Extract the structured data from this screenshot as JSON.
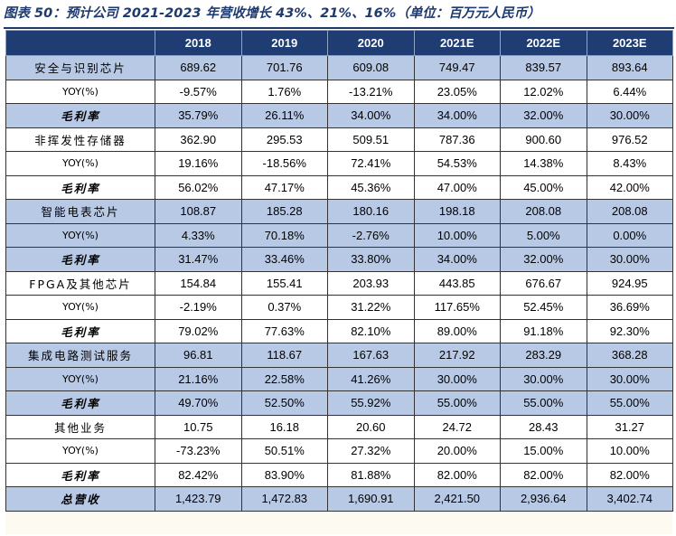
{
  "title": "图表 50：预计公司 2021-2023 年营收增长 43%、21%、16%（单位：百万元人民币）",
  "headers": [
    "",
    "2018",
    "2019",
    "2020",
    "2021E",
    "2022E",
    "2023E"
  ],
  "rows": [
    {
      "label": "安全与识别芯片",
      "kind": "seg",
      "shade": true,
      "values": [
        "689.62",
        "701.76",
        "609.08",
        "749.47",
        "839.57",
        "893.64"
      ]
    },
    {
      "label": "YOY(%)",
      "kind": "yoy",
      "shade": false,
      "values": [
        "-9.57%",
        "1.76%",
        "-13.21%",
        "23.05%",
        "12.02%",
        "6.44%"
      ]
    },
    {
      "label": "毛利率",
      "kind": "gm",
      "shade": true,
      "values": [
        "35.79%",
        "26.11%",
        "34.00%",
        "34.00%",
        "32.00%",
        "30.00%"
      ]
    },
    {
      "label": "非挥发性存储器",
      "kind": "seg",
      "shade": false,
      "values": [
        "362.90",
        "295.53",
        "509.51",
        "787.36",
        "900.60",
        "976.52"
      ]
    },
    {
      "label": "YOY(%)",
      "kind": "yoy",
      "shade": false,
      "values": [
        "19.16%",
        "-18.56%",
        "72.41%",
        "54.53%",
        "14.38%",
        "8.43%"
      ]
    },
    {
      "label": "毛利率",
      "kind": "gm",
      "shade": false,
      "values": [
        "56.02%",
        "47.17%",
        "45.36%",
        "47.00%",
        "45.00%",
        "42.00%"
      ]
    },
    {
      "label": "智能电表芯片",
      "kind": "seg",
      "shade": true,
      "values": [
        "108.87",
        "185.28",
        "180.16",
        "198.18",
        "208.08",
        "208.08"
      ]
    },
    {
      "label": "YOY(%)",
      "kind": "yoy",
      "shade": true,
      "values": [
        "4.33%",
        "70.18%",
        "-2.76%",
        "10.00%",
        "5.00%",
        "0.00%"
      ]
    },
    {
      "label": "毛利率",
      "kind": "gm",
      "shade": true,
      "values": [
        "31.47%",
        "33.46%",
        "33.80%",
        "34.00%",
        "32.00%",
        "30.00%"
      ]
    },
    {
      "label": "FPGA及其他芯片",
      "kind": "seg",
      "shade": false,
      "values": [
        "154.84",
        "155.41",
        "203.93",
        "443.85",
        "676.67",
        "924.95"
      ]
    },
    {
      "label": "YOY(%)",
      "kind": "yoy",
      "shade": false,
      "values": [
        "-2.19%",
        "0.37%",
        "31.22%",
        "117.65%",
        "52.45%",
        "36.69%"
      ]
    },
    {
      "label": "毛利率",
      "kind": "gm",
      "shade": false,
      "values": [
        "79.02%",
        "77.63%",
        "82.10%",
        "89.00%",
        "91.18%",
        "92.30%"
      ]
    },
    {
      "label": "集成电路测试服务",
      "kind": "seg",
      "shade": true,
      "values": [
        "96.81",
        "118.67",
        "167.63",
        "217.92",
        "283.29",
        "368.28"
      ]
    },
    {
      "label": "YOY(%)",
      "kind": "yoy",
      "shade": true,
      "values": [
        "21.16%",
        "22.58%",
        "41.26%",
        "30.00%",
        "30.00%",
        "30.00%"
      ]
    },
    {
      "label": "毛利率",
      "kind": "gm",
      "shade": true,
      "values": [
        "49.70%",
        "52.50%",
        "55.92%",
        "55.00%",
        "55.00%",
        "55.00%"
      ]
    },
    {
      "label": "其他业务",
      "kind": "seg",
      "shade": false,
      "values": [
        "10.75",
        "16.18",
        "20.60",
        "24.72",
        "28.43",
        "31.27"
      ]
    },
    {
      "label": "YOY(%)",
      "kind": "yoy",
      "shade": false,
      "values": [
        "-73.23%",
        "50.51%",
        "27.32%",
        "20.00%",
        "15.00%",
        "10.00%"
      ]
    },
    {
      "label": "毛利率",
      "kind": "gm",
      "shade": false,
      "values": [
        "82.42%",
        "83.90%",
        "81.88%",
        "82.00%",
        "82.00%",
        "82.00%"
      ]
    },
    {
      "label": "总营收",
      "kind": "total",
      "shade": true,
      "values": [
        "1,423.79",
        "1,472.83",
        "1,690.91",
        "2,421.50",
        "2,936.64",
        "3,402.74"
      ]
    }
  ]
}
